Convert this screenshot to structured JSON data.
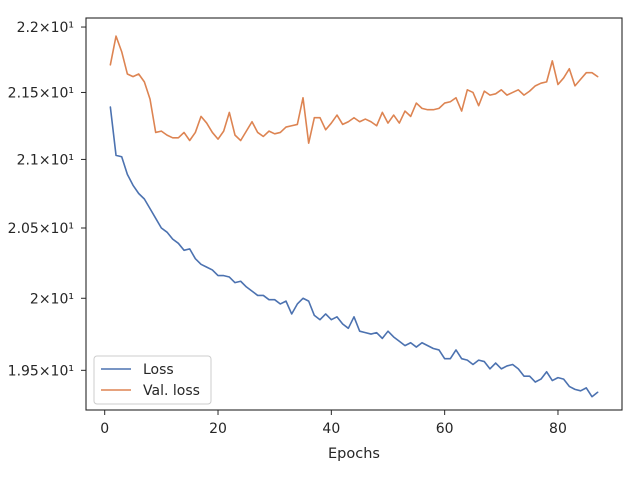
{
  "chart_data": {
    "type": "line",
    "title": "",
    "xlabel": "Epochs",
    "ylabel": "",
    "xlim": [
      -3.3,
      91.3
    ],
    "ylim": [
      19.23,
      22.07
    ],
    "y_scale": "log",
    "grid": false,
    "legend_position": "lower-left",
    "x_ticks": [
      0,
      20,
      40,
      60,
      80
    ],
    "x_tick_labels": [
      "0",
      "20",
      "40",
      "60",
      "80"
    ],
    "y_ticks": [
      19.5,
      20.0,
      20.5,
      21.0,
      21.5,
      22.0
    ],
    "y_tick_labels": [
      "1.95×10¹",
      "2×10¹",
      "2.05×10¹",
      "2.1×10¹",
      "2.15×10¹",
      "2.2×10¹"
    ],
    "x": [
      1,
      2,
      3,
      4,
      5,
      6,
      7,
      8,
      9,
      10,
      11,
      12,
      13,
      14,
      15,
      16,
      17,
      18,
      19,
      20,
      21,
      22,
      23,
      24,
      25,
      26,
      27,
      28,
      29,
      30,
      31,
      32,
      33,
      34,
      35,
      36,
      37,
      38,
      39,
      40,
      41,
      42,
      43,
      44,
      45,
      46,
      47,
      48,
      49,
      50,
      51,
      52,
      53,
      54,
      55,
      56,
      57,
      58,
      59,
      60,
      61,
      62,
      63,
      64,
      65,
      66,
      67,
      68,
      69,
      70,
      71,
      72,
      73,
      74,
      75,
      76,
      77,
      78,
      79,
      80,
      81,
      82,
      83,
      84,
      85,
      86,
      87
    ],
    "series": [
      {
        "name": "Loss",
        "color": "#4c72b0",
        "values": [
          21.39,
          21.03,
          21.02,
          20.89,
          20.81,
          20.75,
          20.71,
          20.64,
          20.57,
          20.5,
          20.47,
          20.42,
          20.39,
          20.34,
          20.35,
          20.28,
          20.24,
          20.22,
          20.2,
          20.16,
          20.16,
          20.15,
          20.11,
          20.12,
          20.08,
          20.05,
          20.02,
          20.02,
          19.99,
          19.99,
          19.96,
          19.98,
          19.89,
          19.96,
          20.0,
          19.98,
          19.88,
          19.85,
          19.89,
          19.85,
          19.87,
          19.82,
          19.79,
          19.87,
          19.77,
          19.76,
          19.75,
          19.76,
          19.72,
          19.77,
          19.73,
          19.7,
          19.67,
          19.69,
          19.66,
          19.69,
          19.67,
          19.65,
          19.64,
          19.58,
          19.58,
          19.64,
          19.58,
          19.57,
          19.54,
          19.57,
          19.56,
          19.51,
          19.55,
          19.51,
          19.53,
          19.54,
          19.51,
          19.46,
          19.46,
          19.42,
          19.44,
          19.49,
          19.43,
          19.45,
          19.44,
          19.39,
          19.37,
          19.36,
          19.38,
          19.32,
          19.35
        ]
      },
      {
        "name": "Val. loss",
        "color": "#dd8452",
        "values": [
          21.71,
          21.93,
          21.81,
          21.64,
          21.62,
          21.64,
          21.58,
          21.45,
          21.2,
          21.21,
          21.18,
          21.16,
          21.16,
          21.2,
          21.14,
          21.2,
          21.32,
          21.27,
          21.2,
          21.15,
          21.21,
          21.35,
          21.18,
          21.14,
          21.21,
          21.28,
          21.2,
          21.17,
          21.21,
          21.19,
          21.2,
          21.24,
          21.25,
          21.26,
          21.46,
          21.12,
          21.31,
          21.31,
          21.22,
          21.27,
          21.33,
          21.26,
          21.28,
          21.31,
          21.28,
          21.3,
          21.28,
          21.25,
          21.35,
          21.27,
          21.33,
          21.27,
          21.36,
          21.32,
          21.42,
          21.38,
          21.37,
          21.37,
          21.38,
          21.42,
          21.43,
          21.46,
          21.36,
          21.52,
          21.5,
          21.4,
          21.51,
          21.48,
          21.49,
          21.52,
          21.48,
          21.5,
          21.52,
          21.48,
          21.51,
          21.55,
          21.57,
          21.58,
          21.74,
          21.56,
          21.61,
          21.68,
          21.55,
          21.6,
          21.65,
          21.65,
          21.62
        ]
      }
    ]
  }
}
